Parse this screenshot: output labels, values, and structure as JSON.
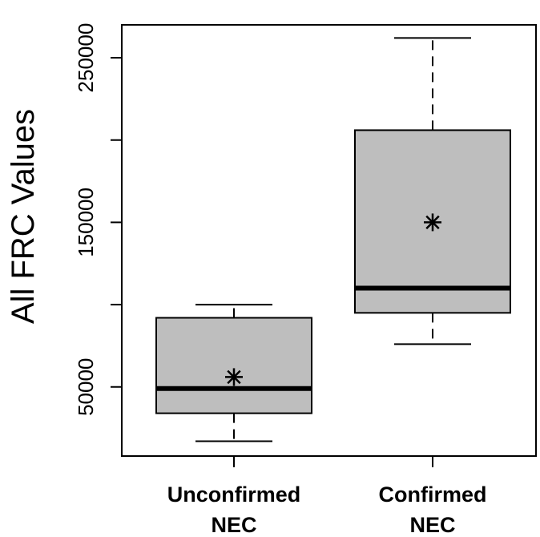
{
  "chart_data": {
    "type": "box",
    "ylabel": "All FRC Values",
    "yticks": [
      50000,
      150000,
      250000
    ],
    "minor_yticks": [
      100000,
      200000
    ],
    "ylim": [
      8000,
      270000
    ],
    "categories": [
      {
        "line1": "Unconfirmed",
        "line2": "NEC"
      },
      {
        "line1": "Confirmed",
        "line2": "NEC"
      }
    ],
    "boxes": [
      {
        "whisker_low": 17000,
        "q1": 34000,
        "median": 49000,
        "q3": 92000,
        "whisker_high": 100000,
        "mean": 56000
      },
      {
        "whisker_low": 76000,
        "q1": 95000,
        "median": 110000,
        "q3": 206000,
        "whisker_high": 262000,
        "mean": 150000
      }
    ],
    "box_color": "#bebebe",
    "mean_marker": "asterisk"
  }
}
